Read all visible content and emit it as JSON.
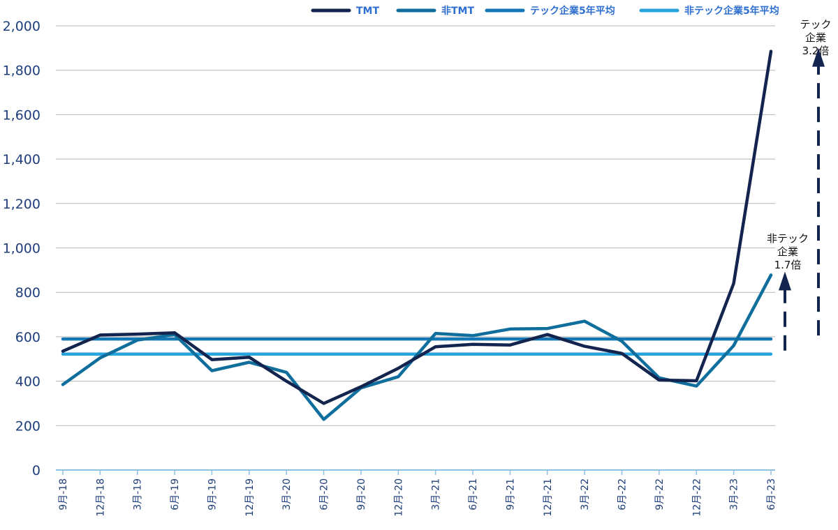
{
  "chart_data": {
    "type": "line",
    "title": "",
    "xlabel": "",
    "ylabel": "",
    "ylim": [
      0,
      2000
    ],
    "yticks": [
      "0",
      "200",
      "400",
      "600",
      "800",
      "1,000",
      "1,200",
      "1,400",
      "1,600",
      "1,800",
      "2,000"
    ],
    "grid": true,
    "legend_position": "top",
    "categories": [
      "9月-18",
      "12月-18",
      "3月-19",
      "6月-19",
      "9月-19",
      "12月-19",
      "3月-20",
      "6月-20",
      "9月-20",
      "12月-20",
      "3月-21",
      "6月-21",
      "9月-21",
      "12月-21",
      "3月-22",
      "6月-22",
      "9月-22",
      "12月-22",
      "3月-23",
      "6月-23"
    ],
    "series": [
      {
        "name": "TMT",
        "color": "#13244e",
        "values": [
          535,
          608,
          612,
          618,
          497,
          508,
          400,
          300,
          375,
          458,
          555,
          566,
          563,
          610,
          557,
          525,
          405,
          402,
          840,
          1885
        ]
      },
      {
        "name": "非TMT",
        "color": "#0f6e9c",
        "values": [
          385,
          505,
          585,
          610,
          447,
          485,
          440,
          228,
          370,
          420,
          615,
          605,
          635,
          637,
          670,
          580,
          415,
          378,
          560,
          878
        ]
      },
      {
        "name": "テック企業5年平均",
        "color": "#1478b7",
        "values": [
          590,
          590,
          590,
          590,
          590,
          590,
          590,
          590,
          590,
          590,
          590,
          590,
          590,
          590,
          590,
          590,
          590,
          590,
          590,
          590
        ]
      },
      {
        "name": "非テック企業5年平均",
        "color": "#29a3dc",
        "values": [
          522,
          522,
          522,
          522,
          522,
          522,
          522,
          522,
          522,
          522,
          522,
          522,
          522,
          522,
          522,
          522,
          522,
          522,
          522,
          522
        ]
      }
    ],
    "annotations": [
      {
        "id": "tech",
        "lines": [
          "テック",
          "企業",
          "3.2倍"
        ],
        "arrow_from": 590,
        "arrow_to": 1885
      },
      {
        "id": "nontech",
        "lines": [
          "非テック",
          "企業",
          "1.7倍"
        ],
        "arrow_from": 522,
        "arrow_to": 878
      }
    ]
  }
}
